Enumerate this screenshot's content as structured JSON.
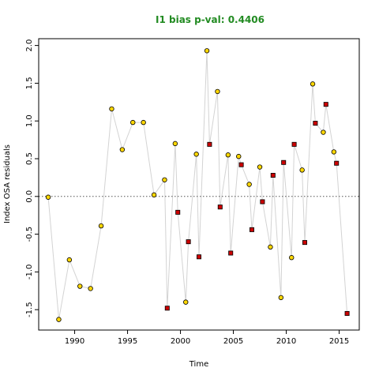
{
  "chart_data": {
    "type": "scatter",
    "title": "I1 bias p-val: 0.4406",
    "title_color": "#228B22",
    "xlabel": "Time",
    "ylabel": "Index OSA residuals",
    "xlim": [
      1986.6,
      2016.9
    ],
    "ylim": [
      -1.77,
      2.09
    ],
    "x_ticks": [
      1990,
      1995,
      2000,
      2005,
      2010,
      2015
    ],
    "x_tick_labels": [
      "1990",
      "1995",
      "2000",
      "2005",
      "2010",
      "2015"
    ],
    "y_ticks": [
      -1.5,
      -1.0,
      -0.5,
      0.0,
      0.5,
      1.0,
      1.5,
      2.0
    ],
    "y_tick_labels": [
      "-1.5",
      "-1.0",
      "-0.5",
      "0.0",
      "0.5",
      "1.0",
      "1.5",
      "2.0"
    ],
    "zero_line": true,
    "grid": false,
    "connect_line_color": "#d3d3d3",
    "series": [
      {
        "marker": "circle",
        "fill_color": "#FFD700",
        "points": [
          [
            1987.5,
            -0.01
          ],
          [
            1988.5,
            -1.63
          ],
          [
            1989.5,
            -0.84
          ],
          [
            1990.5,
            -1.19
          ],
          [
            1991.5,
            -1.22
          ],
          [
            1992.5,
            -0.39
          ],
          [
            1993.5,
            1.16
          ],
          [
            1994.5,
            0.62
          ],
          [
            1995.5,
            0.98
          ],
          [
            1996.5,
            0.98
          ],
          [
            1997.5,
            0.02
          ],
          [
            1998.5,
            0.22
          ],
          [
            1999.5,
            0.7
          ],
          [
            2000.5,
            -1.4
          ],
          [
            2001.5,
            0.56
          ],
          [
            2002.5,
            1.93
          ],
          [
            2003.5,
            1.39
          ],
          [
            2004.5,
            0.55
          ],
          [
            2005.5,
            0.53
          ],
          [
            2006.5,
            0.16
          ],
          [
            2007.5,
            0.39
          ],
          [
            2008.5,
            -0.67
          ],
          [
            2009.5,
            -1.34
          ],
          [
            2010.5,
            -0.81
          ],
          [
            2011.5,
            0.35
          ],
          [
            2012.5,
            1.49
          ],
          [
            2013.5,
            0.85
          ],
          [
            2014.5,
            0.59
          ]
        ]
      },
      {
        "marker": "square",
        "fill_color": "#CC0000",
        "points": [
          [
            1998.75,
            -1.48
          ],
          [
            1999.75,
            -0.21
          ],
          [
            2000.75,
            -0.6
          ],
          [
            2001.75,
            -0.8
          ],
          [
            2002.75,
            0.69
          ],
          [
            2003.75,
            -0.14
          ],
          [
            2004.75,
            -0.75
          ],
          [
            2005.75,
            0.42
          ],
          [
            2006.75,
            -0.44
          ],
          [
            2007.75,
            -0.07
          ],
          [
            2008.75,
            0.28
          ],
          [
            2009.75,
            0.45
          ],
          [
            2010.75,
            0.69
          ],
          [
            2011.75,
            -0.61
          ],
          [
            2012.75,
            0.97
          ],
          [
            2013.75,
            1.22
          ],
          [
            2014.75,
            0.44
          ],
          [
            2015.75,
            -1.55
          ]
        ]
      }
    ]
  }
}
